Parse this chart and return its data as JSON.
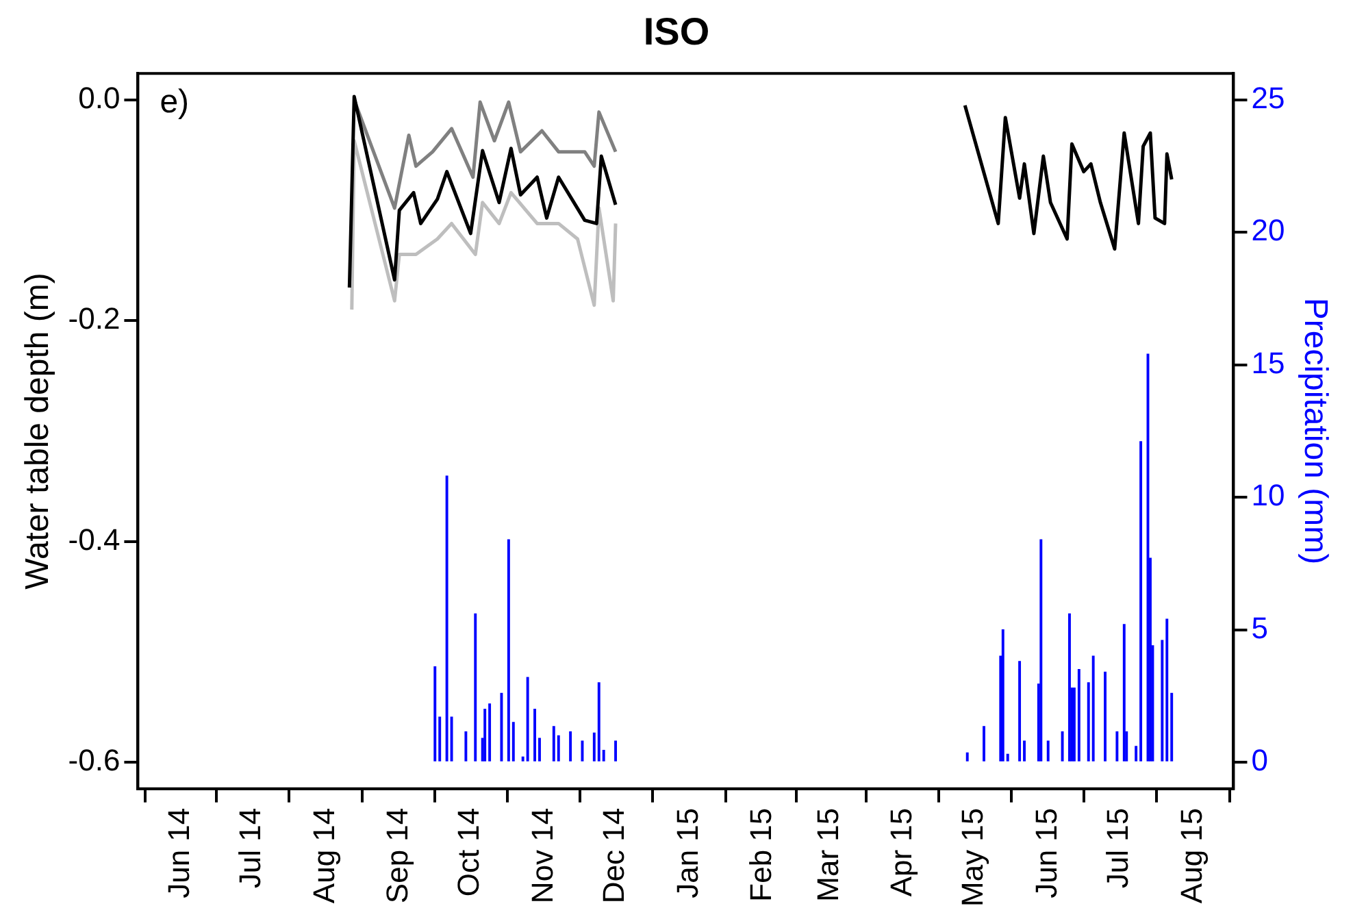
{
  "chart_data": {
    "type": "line",
    "title": "ISO",
    "ylabel": "Water table depth (m)",
    "y2label": "Precipitation (mm)",
    "annotations": [
      "e)"
    ],
    "xlim": [
      "2014-05-14",
      "2015-08-18"
    ],
    "xticks": [
      {
        "value": "2014-06-01",
        "label": "Jun 14"
      },
      {
        "value": "2014-07-01",
        "label": "Jul 14"
      },
      {
        "value": "2014-08-01",
        "label": "Aug 14"
      },
      {
        "value": "2014-09-01",
        "label": "Sep 14"
      },
      {
        "value": "2014-10-01",
        "label": "Oct 14"
      },
      {
        "value": "2014-11-01",
        "label": "Nov 14"
      },
      {
        "value": "2014-12-01",
        "label": "Dec 14"
      },
      {
        "value": "2015-01-01",
        "label": "Jan 15"
      },
      {
        "value": "2015-02-01",
        "label": "Feb 15"
      },
      {
        "value": "2015-03-01",
        "label": "Mar 15"
      },
      {
        "value": "2015-04-01",
        "label": "Apr 15"
      },
      {
        "value": "2015-05-01",
        "label": "May 15"
      },
      {
        "value": "2015-06-01",
        "label": "Jun 15"
      },
      {
        "value": "2015-07-01",
        "label": "Jul 15"
      },
      {
        "value": "2015-08-01",
        "label": "Aug 15"
      }
    ],
    "ylim": [
      -0.624,
      0.024
    ],
    "yticks": [
      {
        "value": 0,
        "label": "0.0"
      },
      -0.2,
      -0.4,
      -0.6
    ],
    "y2lim": [
      -1,
      26
    ],
    "y2ticks": [
      0,
      5,
      10,
      15,
      20,
      25
    ],
    "series": [
      {
        "color": "#000000",
        "x": [
          "2014-08-11",
          "2014-08-13",
          "2014-08-30",
          "2014-09-01",
          "2014-09-07",
          "2014-09-10",
          "2014-09-17",
          "2014-09-21",
          "2014-10-01",
          "2014-10-06",
          "2014-10-13",
          "2014-10-18",
          "2014-10-22",
          "2014-10-29",
          "2014-11-02",
          "2014-11-07",
          "2014-11-18",
          "2014-11-23",
          "2014-11-25",
          "2014-12-01"
        ],
        "values": [
          -0.17,
          0.003,
          -0.163,
          -0.1,
          -0.084,
          -0.112,
          -0.09,
          -0.065,
          -0.121,
          -0.046,
          -0.093,
          -0.044,
          -0.086,
          -0.07,
          -0.107,
          -0.07,
          -0.109,
          -0.112,
          -0.051,
          -0.095
        ]
      },
      {
        "color": "#000000",
        "x": [
          "2015-04-27",
          "2015-05-11",
          "2015-05-14",
          "2015-05-20",
          "2015-05-22",
          "2015-05-26",
          "2015-05-30",
          "2015-06-02",
          "2015-06-09",
          "2015-06-11",
          "2015-06-16",
          "2015-06-19",
          "2015-06-23",
          "2015-06-29",
          "2015-07-03",
          "2015-07-09",
          "2015-07-11",
          "2015-07-14",
          "2015-07-16",
          "2015-07-20",
          "2015-07-21",
          "2015-07-23"
        ],
        "values": [
          -0.005,
          -0.112,
          -0.016,
          -0.089,
          -0.058,
          -0.121,
          -0.051,
          -0.093,
          -0.126,
          -0.04,
          -0.065,
          -0.058,
          -0.093,
          -0.135,
          -0.03,
          -0.112,
          -0.042,
          -0.03,
          -0.107,
          -0.112,
          -0.049,
          -0.072
        ]
      },
      {
        "color": "#808080",
        "x": [
          "2014-08-13",
          "2014-08-30",
          "2014-09-05",
          "2014-09-08",
          "2014-09-15",
          "2014-09-23",
          "2014-10-02",
          "2014-10-05",
          "2014-10-11",
          "2014-10-17",
          "2014-10-22",
          "2014-10-31",
          "2014-11-07",
          "2014-11-18",
          "2014-11-22",
          "2014-11-24",
          "2014-12-01"
        ],
        "values": [
          0.0,
          -0.098,
          -0.032,
          -0.06,
          -0.047,
          -0.026,
          -0.07,
          -0.002,
          -0.037,
          -0.002,
          -0.047,
          -0.028,
          -0.047,
          -0.047,
          -0.06,
          -0.011,
          -0.047
        ]
      },
      {
        "color": "#bebebe",
        "x": [
          "2014-08-12",
          "2014-08-13",
          "2014-08-30",
          "2014-09-01",
          "2014-09-08",
          "2014-09-17",
          "2014-09-23",
          "2014-10-03",
          "2014-10-06",
          "2014-10-13",
          "2014-10-18",
          "2014-10-29",
          "2014-11-07",
          "2014-11-15",
          "2014-11-22",
          "2014-11-24",
          "2014-11-30",
          "2014-12-01"
        ],
        "values": [
          -0.19,
          -0.037,
          -0.182,
          -0.14,
          -0.14,
          -0.126,
          -0.112,
          -0.14,
          -0.093,
          -0.112,
          -0.084,
          -0.112,
          -0.112,
          -0.126,
          -0.186,
          -0.098,
          -0.182,
          -0.112
        ]
      },
      {
        "type": "bar",
        "axis": "y2",
        "color": "#0000ff",
        "x": [
          "2014-09-16",
          "2014-09-18",
          "2014-09-21",
          "2014-09-23",
          "2014-09-29",
          "2014-10-03",
          "2014-10-06",
          "2014-10-07",
          "2014-10-09",
          "2014-10-14",
          "2014-10-17",
          "2014-10-19",
          "2014-10-23",
          "2014-10-25",
          "2014-10-28",
          "2014-10-30",
          "2014-11-05",
          "2014-11-07",
          "2014-11-12",
          "2014-11-17",
          "2014-11-22",
          "2014-11-24",
          "2014-11-26",
          "2014-12-01",
          "2015-04-28",
          "2015-05-05",
          "2015-05-12",
          "2015-05-13",
          "2015-05-15",
          "2015-05-20",
          "2015-05-22",
          "2015-05-28",
          "2015-05-29",
          "2015-06-01",
          "2015-06-07",
          "2015-06-10",
          "2015-06-11",
          "2015-06-12",
          "2015-06-14",
          "2015-06-18",
          "2015-06-20",
          "2015-06-25",
          "2015-06-30",
          "2015-07-03",
          "2015-07-04",
          "2015-07-08",
          "2015-07-10",
          "2015-07-13",
          "2015-07-14",
          "2015-07-15",
          "2015-07-19",
          "2015-07-21",
          "2015-07-23"
        ],
        "values": [
          3.6,
          1.7,
          10.8,
          1.7,
          1.15,
          5.6,
          0.9,
          2.0,
          2.2,
          2.6,
          8.4,
          1.5,
          0.2,
          3.2,
          2.0,
          0.9,
          1.35,
          1.0,
          1.15,
          0.8,
          1.1,
          3.0,
          0.45,
          0.8,
          0.35,
          1.35,
          4.0,
          5.0,
          0.3,
          3.8,
          0.8,
          2.95,
          8.4,
          0.8,
          1.15,
          5.6,
          2.8,
          2.8,
          3.5,
          3.0,
          4.0,
          3.4,
          1.15,
          5.2,
          1.15,
          0.6,
          12.1,
          15.4,
          7.7,
          4.4,
          4.6,
          5.4,
          2.6
        ]
      }
    ]
  }
}
